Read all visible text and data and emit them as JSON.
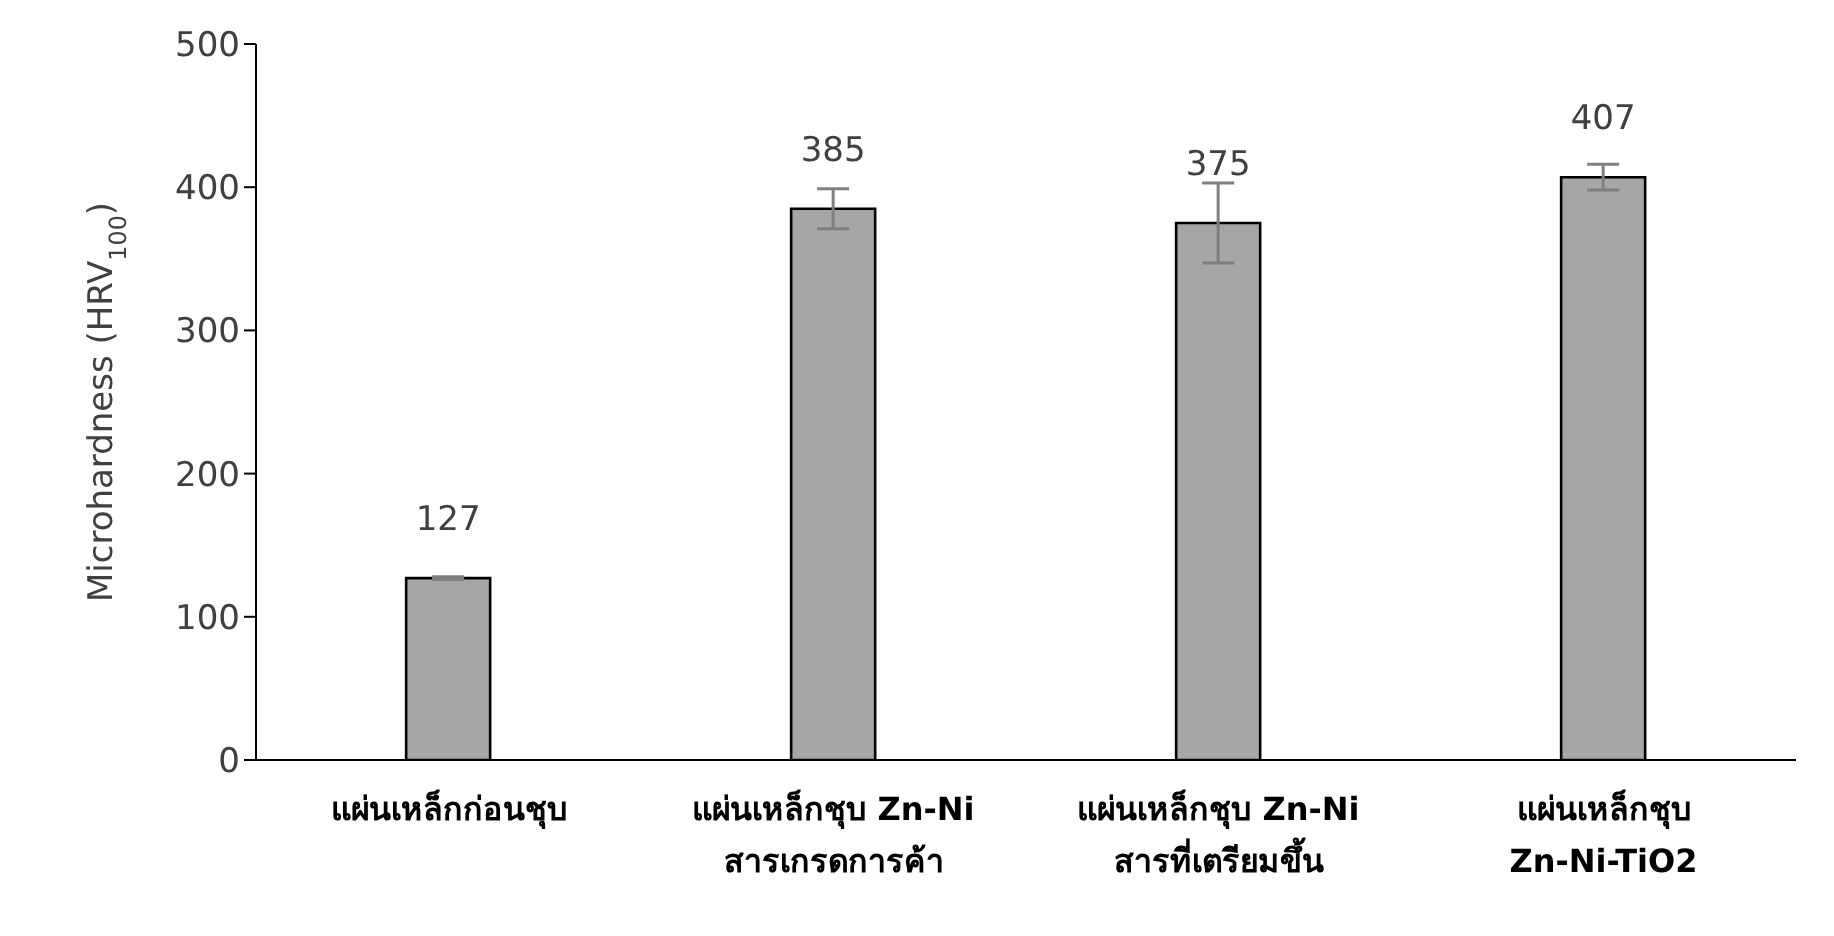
{
  "chart_data": {
    "type": "bar",
    "ylabel": "Microhardness (HRV$_{100}$)",
    "categories": [
      "แผ่นเหล็กก่อนชุบ",
      "แผ่นเหล็กชุบ Zn-Ni สารเกรดการค้า",
      "แผ่นเหล็กชุบ Zn-Ni สารที่เตรียมขึ้น",
      "แผ่นเหล็กชุบ Zn-Ni-TiO2"
    ],
    "values": [
      127,
      385,
      375,
      407
    ],
    "errors": [
      1,
      14,
      28,
      9
    ],
    "color": "#a6a6a6",
    "ylim": [
      0,
      500
    ],
    "yticks": [
      0,
      100,
      200,
      300,
      400,
      500
    ],
    "grid": false,
    "data_labels": true
  }
}
